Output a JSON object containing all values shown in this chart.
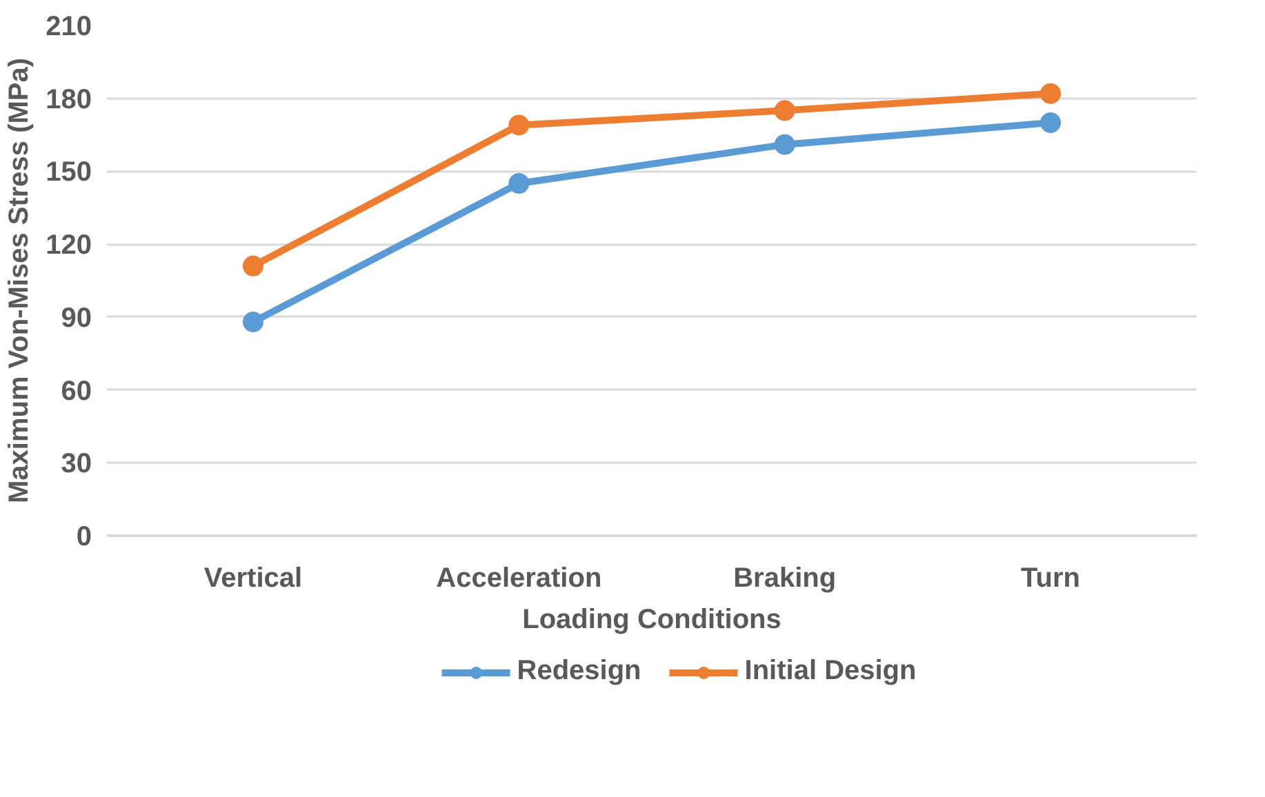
{
  "chart_data": {
    "type": "line",
    "xlabel": "Loading Conditions",
    "ylabel": "Maximum Von-Mises Stress (MPa)",
    "categories": [
      "Vertical",
      "Acceleration",
      "Braking",
      "Turn"
    ],
    "series": [
      {
        "name": "Redesign",
        "color": "#5b9bd5",
        "values": [
          88,
          145,
          161,
          170
        ]
      },
      {
        "name": "Initial Design",
        "color": "#ed7d31",
        "values": [
          111,
          169,
          175,
          182
        ]
      }
    ],
    "ylim": [
      0,
      210
    ],
    "yticks": [
      0,
      30,
      60,
      90,
      120,
      150,
      180,
      210
    ],
    "grid": "y",
    "legend": "bottom",
    "marker": "circle",
    "line_style": "solid"
  }
}
